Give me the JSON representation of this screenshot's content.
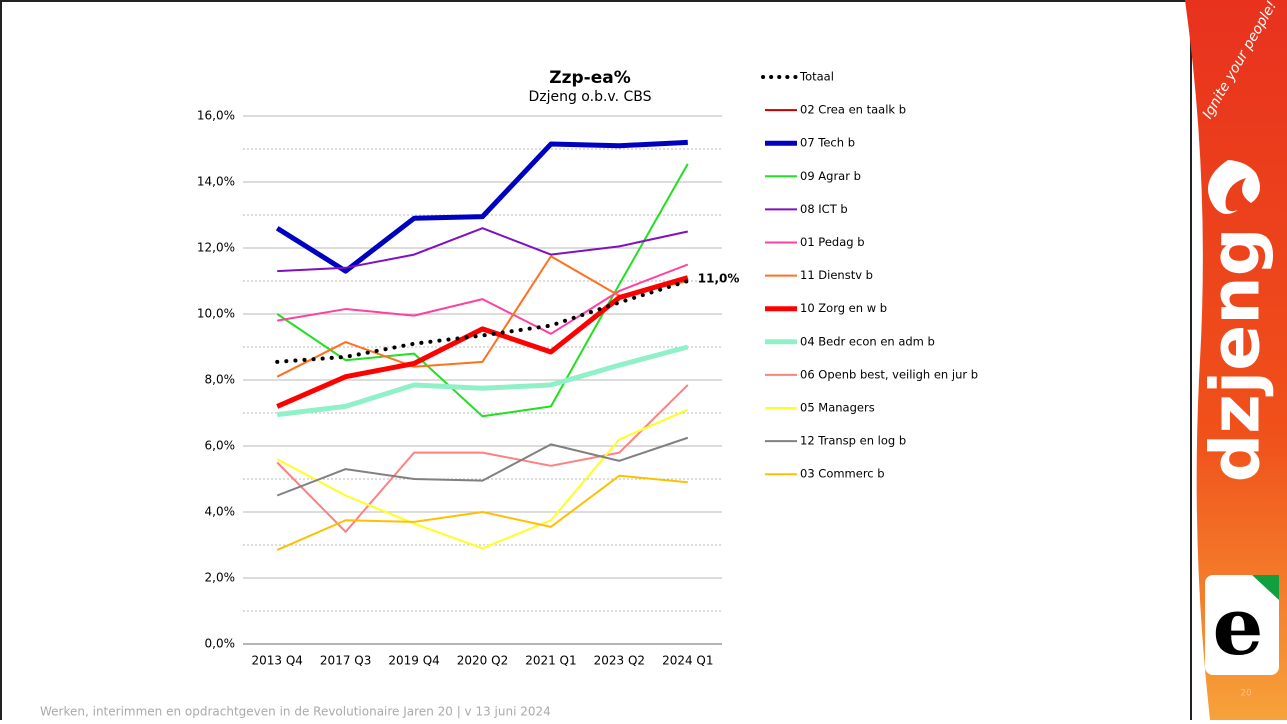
{
  "chart_data": {
    "type": "line",
    "title": "Zzp-ea%",
    "subtitle": "Dzjeng o.b.v. CBS",
    "categories": [
      "2013 Q4",
      "2017 Q3",
      "2019 Q4",
      "2020 Q2",
      "2021 Q1",
      "2023 Q2",
      "2024 Q1"
    ],
    "ylim": [
      0,
      16
    ],
    "yticks": [
      {
        "value": 0,
        "label": "0,0%"
      },
      {
        "value": 2,
        "label": "2,0%"
      },
      {
        "value": 4,
        "label": "4,0%"
      },
      {
        "value": 6,
        "label": "6,0%"
      },
      {
        "value": 8,
        "label": "8,0%"
      },
      {
        "value": 10,
        "label": "10,0%"
      },
      {
        "value": 12,
        "label": "12,0%"
      },
      {
        "value": 14,
        "label": "14,0%"
      },
      {
        "value": 16,
        "label": "16,0%"
      }
    ],
    "grid": true,
    "legend": "right",
    "series": [
      {
        "name": "Totaal",
        "color": "#000000",
        "width": 4,
        "style": "dotted",
        "values": [
          8.55,
          8.7,
          9.1,
          9.35,
          9.65,
          10.35,
          11.0
        ],
        "value_labels": [
          null,
          null,
          null,
          null,
          null,
          null,
          "11,0%"
        ]
      },
      {
        "name": "02 Crea en taalk b",
        "color": "#c00000",
        "width": 2,
        "values": [
          7.2,
          8.1,
          8.5,
          9.5,
          8.9,
          10.5,
          11.05
        ]
      },
      {
        "name": "07 Tech b",
        "color": "#0000c0",
        "width": 5,
        "values": [
          12.6,
          11.3,
          12.9,
          12.95,
          15.15,
          15.1,
          15.2
        ]
      },
      {
        "name": "09 Agrar b",
        "color": "#20e020",
        "width": 2,
        "values": [
          10.0,
          8.6,
          8.8,
          6.9,
          7.2,
          10.9,
          14.55
        ]
      },
      {
        "name": "08 ICT b",
        "color": "#8010c0",
        "width": 2,
        "values": [
          11.3,
          11.4,
          11.8,
          12.6,
          11.8,
          12.05,
          12.5
        ]
      },
      {
        "name": "01 Pedag b",
        "color": "#ff40a0",
        "width": 2,
        "values": [
          9.8,
          10.15,
          9.95,
          10.45,
          9.4,
          10.7,
          11.5
        ]
      },
      {
        "name": "11 Dienstv b",
        "color": "#ff7020",
        "width": 2,
        "values": [
          8.1,
          9.15,
          8.4,
          8.55,
          11.75,
          10.55,
          11.0
        ]
      },
      {
        "name": "10 Zorg en w b",
        "color": "#ff0000",
        "width": 5,
        "values": [
          7.2,
          8.1,
          8.5,
          9.55,
          8.85,
          10.5,
          11.1
        ]
      },
      {
        "name": "04 Bedr econ en adm b",
        "color": "#90f0c8",
        "width": 5,
        "values": [
          6.95,
          7.2,
          7.85,
          7.75,
          7.85,
          8.45,
          9.0
        ]
      },
      {
        "name": "06 Openb best, veiligh en jur b",
        "color": "#ff8080",
        "width": 2,
        "values": [
          5.5,
          3.4,
          5.8,
          5.8,
          5.4,
          5.8,
          7.85
        ]
      },
      {
        "name": "05 Managers",
        "color": "#ffff20",
        "width": 2,
        "values": [
          5.6,
          4.5,
          3.65,
          2.9,
          3.75,
          6.2,
          7.1
        ]
      },
      {
        "name": "12 Transp en log b",
        "color": "#808080",
        "width": 2,
        "values": [
          4.5,
          5.3,
          5.0,
          4.95,
          6.05,
          5.55,
          6.25
        ]
      },
      {
        "name": "03 Commerc b",
        "color": "#ffc000",
        "width": 2,
        "values": [
          2.85,
          3.75,
          3.7,
          4.0,
          3.55,
          5.1,
          4.9
        ]
      }
    ]
  },
  "footer": "Werken, interimmen en opdrachtgeven in de Revolutionaire Jaren 20  |  v 13 juni 2024",
  "page_number": "20",
  "logo": "dzjeng",
  "tagline": "Ignite your people!"
}
